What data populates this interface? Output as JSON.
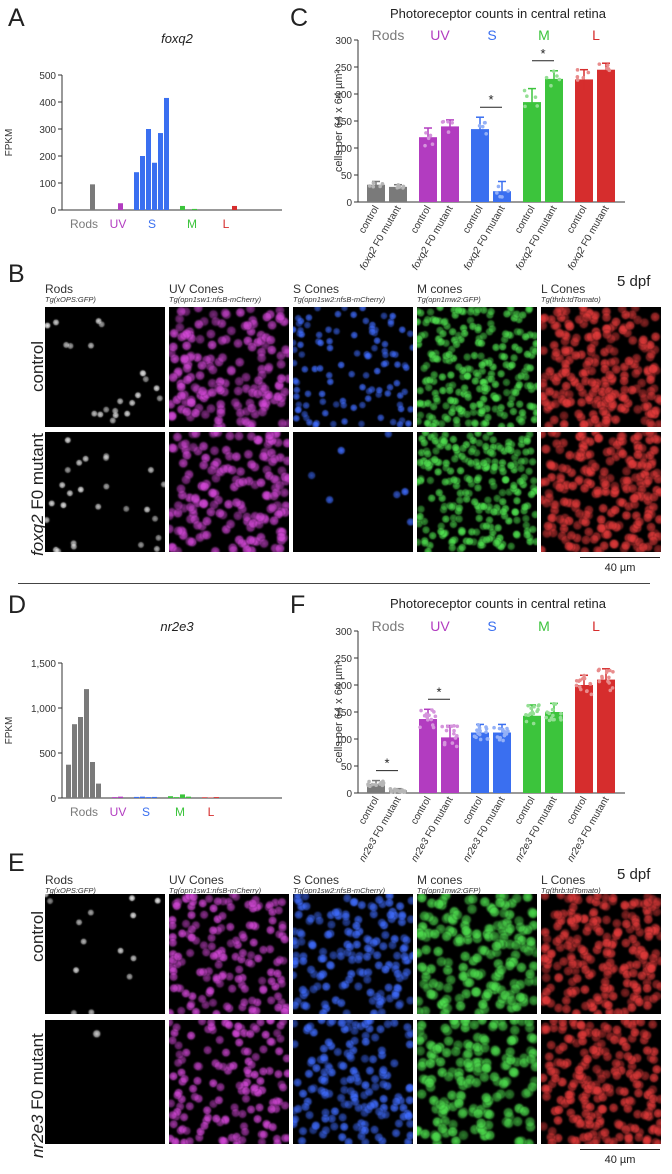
{
  "panels": {
    "A": {
      "letter": "A",
      "chart_data": {
        "type": "bar",
        "title": "foxq2",
        "ylabel": "FPKM",
        "ylim": [
          0,
          500
        ],
        "yticks": [
          "0",
          "100",
          "200",
          "300",
          "400",
          "500"
        ],
        "group_labels": [
          "Rods",
          "UV",
          "S",
          "M",
          "L"
        ],
        "group_colors": [
          "#7a7a7a",
          "#b23cc0",
          "#3a6ff0",
          "#3cc43c",
          "#d62d2d"
        ],
        "groups": [
          {
            "name": "Rods",
            "values": [
              0,
              0,
              0,
              0,
              95,
              0
            ]
          },
          {
            "name": "UV",
            "values": [
              0,
              25
            ]
          },
          {
            "name": "S",
            "values": [
              140,
              200,
              300,
              175,
              285,
              415
            ]
          },
          {
            "name": "M",
            "values": [
              15,
              0,
              4,
              0
            ]
          },
          {
            "name": "L",
            "values": [
              0,
              0,
              0,
              15
            ]
          }
        ]
      }
    },
    "C": {
      "letter": "C",
      "chart_data": {
        "type": "bar",
        "title": "Photoreceptor counts in central retina",
        "ylabel": "cells per 64 x 64 µm²",
        "ylim": [
          0,
          300
        ],
        "yticks": [
          "0",
          "50",
          "100",
          "150",
          "200",
          "250",
          "300"
        ],
        "groups": [
          {
            "name": "Rods",
            "color": "#7a7a7a",
            "bars": [
              {
                "category": "control",
                "mean": 32,
                "sd": 6
              },
              {
                "category": "foxq2 F0 mutant",
                "mean": 28,
                "sd": 4
              }
            ]
          },
          {
            "name": "UV",
            "color": "#b23cc0",
            "bars": [
              {
                "category": "control",
                "mean": 120,
                "sd": 17
              },
              {
                "category": "foxq2 F0 mutant",
                "mean": 140,
                "sd": 12
              }
            ]
          },
          {
            "name": "S",
            "color": "#3a6ff0",
            "bars": [
              {
                "category": "control",
                "mean": 135,
                "sd": 22
              },
              {
                "category": "foxq2 F0 mutant",
                "mean": 20,
                "sd": 18
              }
            ]
          },
          {
            "name": "M",
            "color": "#3cc43c",
            "bars": [
              {
                "category": "control",
                "mean": 185,
                "sd": 25
              },
              {
                "category": "foxq2 F0 mutant",
                "mean": 228,
                "sd": 15
              }
            ]
          },
          {
            "name": "L",
            "color": "#d62d2d",
            "bars": [
              {
                "category": "control",
                "mean": 227,
                "sd": 18
              },
              {
                "category": "foxq2 F0 mutant",
                "mean": 245,
                "sd": 12
              }
            ]
          }
        ],
        "significance": [
          {
            "group": "S",
            "text": "*"
          },
          {
            "group": "M",
            "text": "*"
          }
        ]
      }
    },
    "B": {
      "letter": "B",
      "stage": "5 dpf",
      "scale_bar": "40 µm",
      "row_labels": [
        {
          "italic": "",
          "rest": "control"
        },
        {
          "italic": "foxq2",
          "rest": " F0 mutant"
        }
      ],
      "columns": [
        {
          "name": "Rods",
          "transgene": "Tg(xOPS:GFP)",
          "color": "#7a7a7a"
        },
        {
          "name": "UV Cones",
          "transgene": "Tg(opn1sw1:nfsB-mCherry)",
          "color": "#b23cc0"
        },
        {
          "name": "S Cones",
          "transgene": "Tg(opn1sw2:nfsB-mCherry)",
          "color": "#3a6ff0"
        },
        {
          "name": "M cones",
          "transgene": "Tg(opn1mw2:GFP)",
          "color": "#3cc43c"
        },
        {
          "name": "L Cones",
          "transgene": "Tg(thrb:tdTomato)",
          "color": "#d62d2d"
        }
      ]
    },
    "D": {
      "letter": "D",
      "chart_data": {
        "type": "bar",
        "title": "nr2e3",
        "ylabel": "FPKM",
        "ylim": [
          0,
          1500
        ],
        "yticks": [
          "0",
          "500",
          "1,000",
          "1,500"
        ],
        "group_labels": [
          "Rods",
          "UV",
          "S",
          "M",
          "L"
        ],
        "group_colors": [
          "#7a7a7a",
          "#b23cc0",
          "#3a6ff0",
          "#3cc43c",
          "#d62d2d"
        ],
        "groups": [
          {
            "name": "Rods",
            "values": [
              370,
              820,
              900,
              1210,
              400,
              160
            ]
          },
          {
            "name": "UV",
            "values": [
              10,
              15
            ]
          },
          {
            "name": "S",
            "values": [
              12,
              15,
              10,
              12
            ]
          },
          {
            "name": "M",
            "values": [
              20,
              10,
              40,
              15
            ]
          },
          {
            "name": "L",
            "values": [
              8,
              5,
              10
            ]
          }
        ]
      }
    },
    "F": {
      "letter": "F",
      "chart_data": {
        "type": "bar",
        "title": "Photoreceptor counts in central retina",
        "ylabel": "cells per 64 x 64 µm²",
        "ylim": [
          0,
          300
        ],
        "yticks": [
          "0",
          "50",
          "100",
          "150",
          "200",
          "250",
          "300"
        ],
        "groups": [
          {
            "name": "Rods",
            "color": "#7a7a7a",
            "bars": [
              {
                "category": "control",
                "mean": 17,
                "sd": 6
              },
              {
                "category": "nr2e3 F0 mutant",
                "mean": 5,
                "sd": 3
              }
            ]
          },
          {
            "name": "UV",
            "color": "#b23cc0",
            "bars": [
              {
                "category": "control",
                "mean": 137,
                "sd": 18
              },
              {
                "category": "nr2e3 F0 mutant",
                "mean": 103,
                "sd": 22
              }
            ]
          },
          {
            "name": "S",
            "color": "#3a6ff0",
            "bars": [
              {
                "category": "control",
                "mean": 112,
                "sd": 15
              },
              {
                "category": "nr2e3 F0 mutant",
                "mean": 112,
                "sd": 15
              }
            ]
          },
          {
            "name": "M",
            "color": "#3cc43c",
            "bars": [
              {
                "category": "control",
                "mean": 143,
                "sd": 20
              },
              {
                "category": "nr2e3 F0 mutant",
                "mean": 150,
                "sd": 16
              }
            ]
          },
          {
            "name": "L",
            "color": "#d62d2d",
            "bars": [
              {
                "category": "control",
                "mean": 200,
                "sd": 18
              },
              {
                "category": "nr2e3 F0 mutant",
                "mean": 210,
                "sd": 20
              }
            ]
          }
        ],
        "significance": [
          {
            "group": "Rods",
            "text": "*"
          },
          {
            "group": "UV",
            "text": "*"
          }
        ]
      }
    },
    "E": {
      "letter": "E",
      "stage": "5 dpf",
      "scale_bar": "40 µm",
      "row_labels": [
        {
          "italic": "",
          "rest": "control"
        },
        {
          "italic": "nr2e3",
          "rest": " F0 mutant"
        }
      ],
      "columns": [
        {
          "name": "Rods",
          "transgene": "Tg(xOPS:GFP)",
          "color": "#7a7a7a"
        },
        {
          "name": "UV Cones",
          "transgene": "Tg(opn1sw1:nfsB-mCherry)",
          "color": "#b23cc0"
        },
        {
          "name": "S Cones",
          "transgene": "Tg(opn1sw2:nfsB-mCherry)",
          "color": "#3a6ff0"
        },
        {
          "name": "M cones",
          "transgene": "Tg(opn1mw2:GFP)",
          "color": "#3cc43c"
        },
        {
          "name": "L Cones",
          "transgene": "Tg(thrb:tdTomato)",
          "color": "#d62d2d"
        }
      ]
    }
  }
}
